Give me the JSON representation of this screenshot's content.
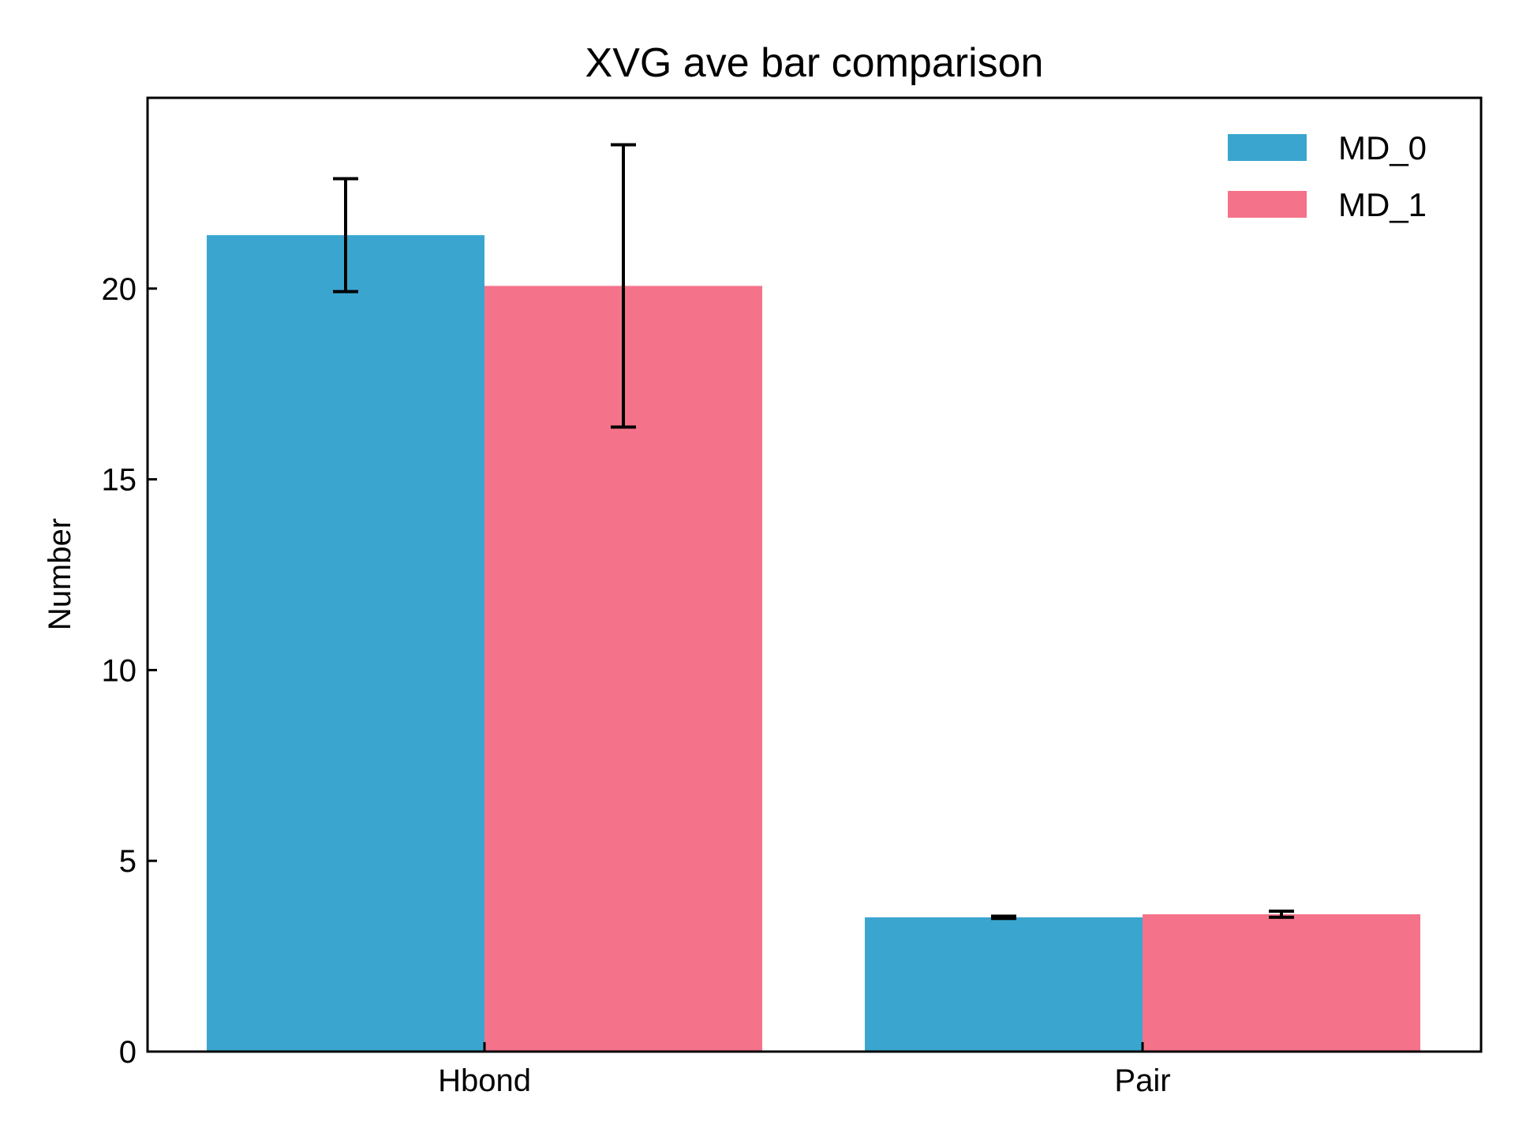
{
  "chart_data": {
    "type": "bar",
    "title": "XVG ave bar comparison",
    "xlabel": "",
    "ylabel": "Number",
    "categories": [
      "Hbond",
      "Pair"
    ],
    "series": [
      {
        "name": "MD_0",
        "color": "#3aa6cf",
        "values": [
          21.4,
          3.52
        ],
        "errors": [
          1.48,
          0.03
        ]
      },
      {
        "name": "MD_1",
        "color": "#f5738a",
        "values": [
          20.07,
          3.6
        ],
        "errors": [
          3.7,
          0.08
        ]
      }
    ],
    "ylim": [
      0,
      25
    ],
    "yticks": [
      0,
      5,
      10,
      15,
      20
    ],
    "grid": false,
    "legend_position": "top-right",
    "error_bar_color": "#000000"
  }
}
